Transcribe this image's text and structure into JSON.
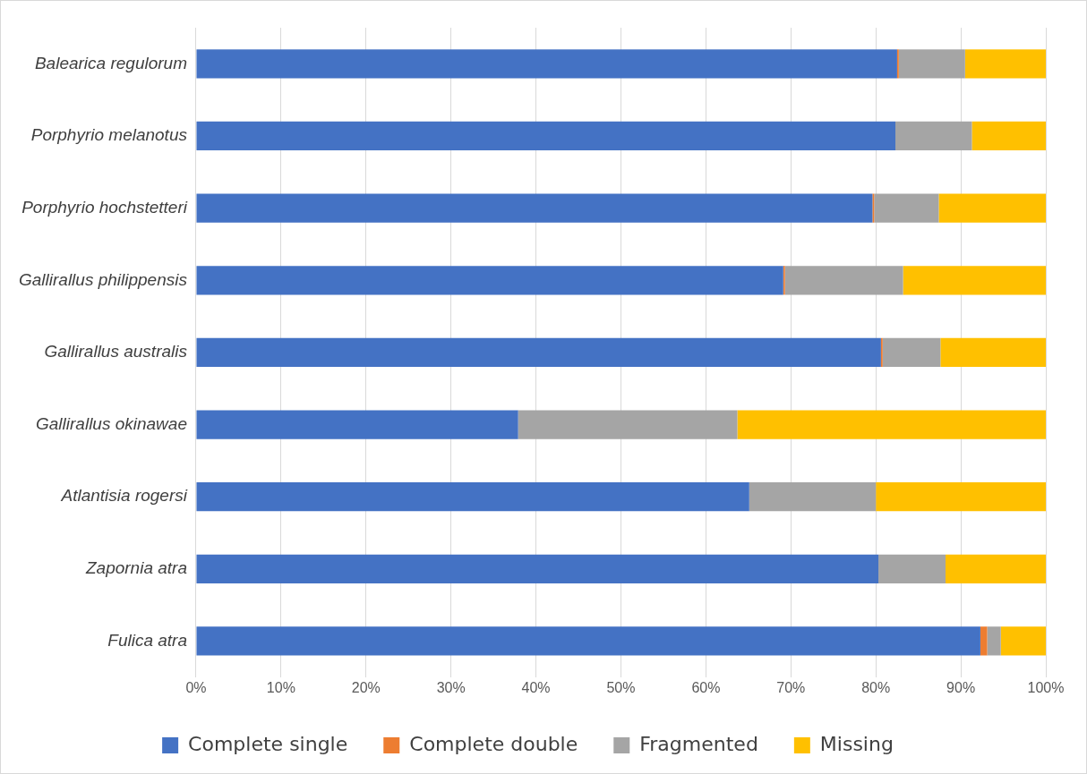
{
  "chart_data": {
    "type": "bar",
    "orientation": "horizontal",
    "stacked": true,
    "categories": [
      "Balearica regulorum",
      "Porphyrio melanotus",
      "Porphyrio hochstetteri",
      "Gallirallus philippensis",
      "Gallirallus australis",
      "Gallirallus okinawae",
      "Atlantisia rogersi",
      "Zapornia atra",
      "Fulica atra"
    ],
    "series": [
      {
        "name": "Complete single",
        "color": "#4472c4",
        "values": [
          82.5,
          82.3,
          79.6,
          69.1,
          80.6,
          37.9,
          65.1,
          80.3,
          92.3
        ]
      },
      {
        "name": "Complete double",
        "color": "#ed7d31",
        "values": [
          0.2,
          0,
          0.2,
          0.2,
          0.2,
          0,
          0,
          0,
          0.8
        ]
      },
      {
        "name": "Fragmented",
        "color": "#a5a5a5",
        "values": [
          7.8,
          9.0,
          7.6,
          13.9,
          6.8,
          25.8,
          14.9,
          7.9,
          1.6
        ]
      },
      {
        "name": "Missing",
        "color": "#ffc000",
        "values": [
          9.5,
          8.7,
          12.6,
          16.8,
          12.4,
          36.3,
          20.0,
          11.8,
          5.3
        ]
      }
    ],
    "xlim": [
      0,
      100
    ],
    "xticks": [
      {
        "value": 0,
        "label": "0%"
      },
      {
        "value": 10,
        "label": "10%"
      },
      {
        "value": 20,
        "label": "20%"
      },
      {
        "value": 30,
        "label": "30%"
      },
      {
        "value": 40,
        "label": "40%"
      },
      {
        "value": 50,
        "label": "50%"
      },
      {
        "value": 60,
        "label": "60%"
      },
      {
        "value": 70,
        "label": "70%"
      },
      {
        "value": 80,
        "label": "80%"
      },
      {
        "value": 90,
        "label": "90%"
      },
      {
        "value": 100,
        "label": "100%"
      }
    ],
    "grid": "x",
    "legend": "bottom"
  }
}
